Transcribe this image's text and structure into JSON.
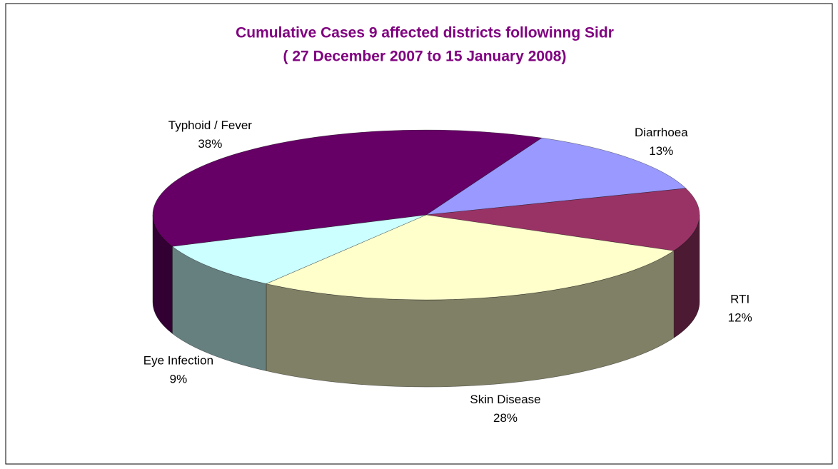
{
  "chart_data": {
    "type": "pie3d",
    "title": "Cumulative Cases 9 affected districts followinng Sidr",
    "subtitle": "( 27 December 2007 to 15 January 2008)",
    "categories": [
      "Diarrhoea",
      "RTI",
      "Skin Disease",
      "Eye Infection",
      "Typhoid / Fever"
    ],
    "values": [
      13,
      12,
      28,
      9,
      38
    ],
    "value_labels": [
      "13%",
      "12%",
      "28%",
      "9%",
      "38%"
    ],
    "colors": [
      "#9999ff",
      "#993366",
      "#ffffcc",
      "#ccffff",
      "#660066"
    ]
  }
}
